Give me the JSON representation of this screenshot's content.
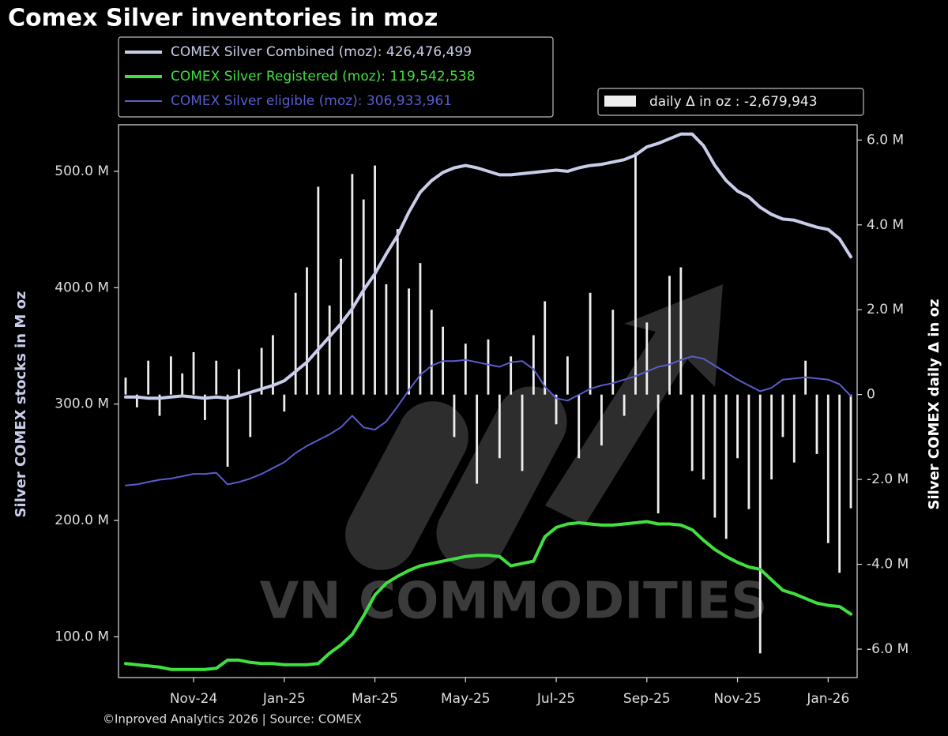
{
  "chart_data": {
    "type": "line",
    "title": "Comex Silver inventories in moz",
    "ylabel": "Silver COMEX stocks in M oz",
    "y2label": "Silver COMEX daily Δ in oz",
    "source": "©Inproved Analytics 2026 | Source: COMEX",
    "watermark": "VN COMMODITIES",
    "categories": [
      null,
      null,
      null,
      null,
      null,
      null,
      "Nov-24",
      null,
      null,
      null,
      null,
      null,
      null,
      null,
      "Jan-25",
      null,
      null,
      null,
      null,
      null,
      null,
      null,
      "Mar-25",
      null,
      null,
      null,
      null,
      null,
      null,
      null,
      "May-25",
      null,
      null,
      null,
      null,
      null,
      null,
      null,
      "Jul-25",
      null,
      null,
      null,
      null,
      null,
      null,
      null,
      "Sep-25",
      null,
      null,
      null,
      null,
      null,
      null,
      null,
      "Nov-25",
      null,
      null,
      null,
      null,
      null,
      null,
      null,
      "Jan-26",
      null,
      null
    ],
    "ylim": [
      65,
      540
    ],
    "yticks": [
      {
        "value": 100,
        "label": "100.0 M"
      },
      {
        "value": 200,
        "label": "200.0 M"
      },
      {
        "value": 300,
        "label": "300.0 M"
      },
      {
        "value": 400,
        "label": "400.0 M"
      },
      {
        "value": 500,
        "label": "500.0 M"
      }
    ],
    "y2lim": [
      -6.67,
      6.36
    ],
    "y2ticks": [
      {
        "value": 6,
        "label": "6.0 M"
      },
      {
        "value": 4,
        "label": "4.0 M"
      },
      {
        "value": 2,
        "label": "2.0 M"
      },
      0,
      {
        "value": -2,
        "label": "-2.0 M"
      },
      {
        "value": -4,
        "label": "-4.0 M"
      },
      {
        "value": -6,
        "label": "-6.0 M"
      }
    ],
    "series": [
      {
        "name": "daily Δ in oz : -2,679,943",
        "type": "bar",
        "axis": "y2",
        "color": "#eeeeee",
        "values": [
          0.4,
          -0.3,
          0.8,
          -0.5,
          0.9,
          0.5,
          1.0,
          -0.6,
          0.8,
          -1.7,
          0.6,
          -1.0,
          1.1,
          1.4,
          -0.4,
          2.4,
          3.0,
          4.9,
          2.1,
          3.2,
          5.2,
          4.6,
          5.4,
          2.6,
          3.9,
          2.5,
          3.1,
          2.0,
          1.6,
          -1.0,
          1.2,
          -2.1,
          1.3,
          -1.5,
          0.9,
          -1.8,
          1.4,
          2.2,
          -0.7,
          0.9,
          -1.5,
          2.4,
          -1.2,
          2.0,
          -0.5,
          5.7,
          1.7,
          -2.8,
          2.8,
          3.0,
          -1.8,
          -2.0,
          -2.9,
          -3.4,
          -1.5,
          -2.7,
          -6.1,
          -2.0,
          -1.0,
          -1.6,
          0.8,
          -1.4,
          -3.5,
          -4.2,
          -2.679943
        ]
      },
      {
        "name": "COMEX Silver eligible (moz): 306,933,961",
        "color": "#5a5ccc",
        "width": 2,
        "values": [
          230,
          231,
          233,
          235,
          236,
          238,
          240,
          240,
          241,
          231,
          233,
          236,
          240,
          245,
          250,
          258,
          264,
          269,
          274,
          280,
          290,
          280,
          278,
          285,
          298,
          312,
          325,
          333,
          337,
          337,
          338,
          336,
          334,
          332,
          336,
          337,
          330,
          315,
          305,
          303,
          308,
          313,
          316,
          318,
          321,
          324,
          328,
          332,
          334,
          338,
          341,
          339,
          333,
          327,
          321,
          316,
          311,
          314,
          321,
          322,
          323,
          322,
          321,
          317,
          306.933961
        ]
      },
      {
        "name": "COMEX Silver Registered (moz): 119,542,538",
        "color": "#3fe03f",
        "width": 4,
        "values": [
          77,
          76,
          75,
          74,
          72,
          72,
          72,
          72,
          73,
          80,
          80,
          78,
          77,
          77,
          76,
          76,
          76,
          77,
          86,
          93,
          102,
          118,
          136,
          146,
          152,
          157,
          161,
          163,
          165,
          167,
          169,
          170,
          170,
          169,
          161,
          163,
          165,
          186,
          194,
          197,
          198,
          197,
          196,
          196,
          197,
          198,
          199,
          197,
          197,
          196,
          192,
          183,
          175,
          169,
          164,
          160,
          158,
          149,
          140,
          137,
          133,
          129,
          127,
          126,
          119.542538
        ]
      },
      {
        "name": "COMEX Silver Combined (moz): 426,476,499",
        "color": "#c9cdea",
        "width": 4,
        "values": [
          306,
          306,
          305,
          305,
          306,
          307,
          306,
          305,
          306,
          305,
          307,
          310,
          313,
          316,
          320,
          328,
          336,
          347,
          358,
          369,
          382,
          398,
          412,
          429,
          445,
          465,
          482,
          492,
          499,
          503,
          505,
          503,
          500,
          497,
          497,
          498,
          499,
          500,
          501,
          500,
          503,
          505,
          506,
          508,
          510,
          514,
          521,
          524,
          528,
          532,
          532,
          522,
          505,
          492,
          483,
          478,
          469,
          463,
          459,
          458,
          455,
          452,
          450,
          442,
          426.476499
        ]
      }
    ]
  }
}
